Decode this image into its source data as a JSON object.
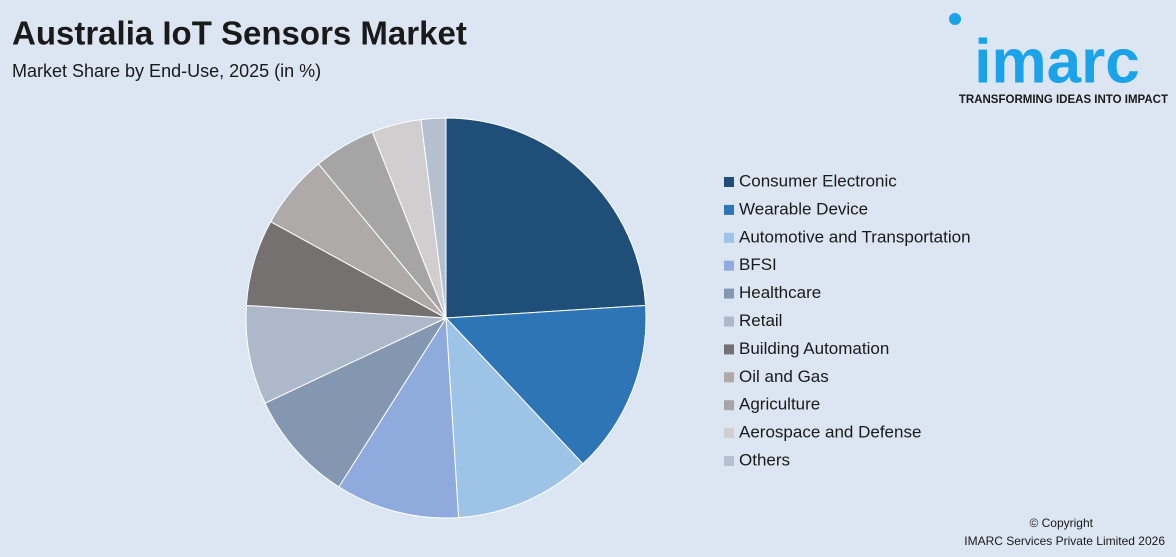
{
  "chart_data": {
    "type": "pie",
    "title": "Australia IoT Sensors Market",
    "subtitle": "Market Share by End-Use, 2025 (in %)",
    "categories": [
      "Consumer Electronic",
      "Wearable Device",
      "Automotive and Transportation",
      "BFSI",
      "Healthcare",
      "Retail",
      "Building Automation",
      "Oil and Gas",
      "Agriculture",
      "Aerospace and Defense",
      "Others"
    ],
    "values": [
      24,
      14,
      11,
      10,
      9,
      8,
      7,
      6,
      5,
      4,
      2
    ],
    "colors": [
      "#1f4e79",
      "#2e75b6",
      "#9dc3e6",
      "#8faadc",
      "#8497b0",
      "#adb9ca",
      "#767171",
      "#aeaaaa",
      "#a5a5a5",
      "#d0cece",
      "#b4c0cf"
    ],
    "legend": "right"
  },
  "logo": {
    "name": "imarc",
    "tagline": "TRANSFORMING IDEAS INTO IMPACT"
  },
  "copyright": {
    "line1": "© Copyright",
    "line2": "IMARC Services Private Limited 2026"
  }
}
